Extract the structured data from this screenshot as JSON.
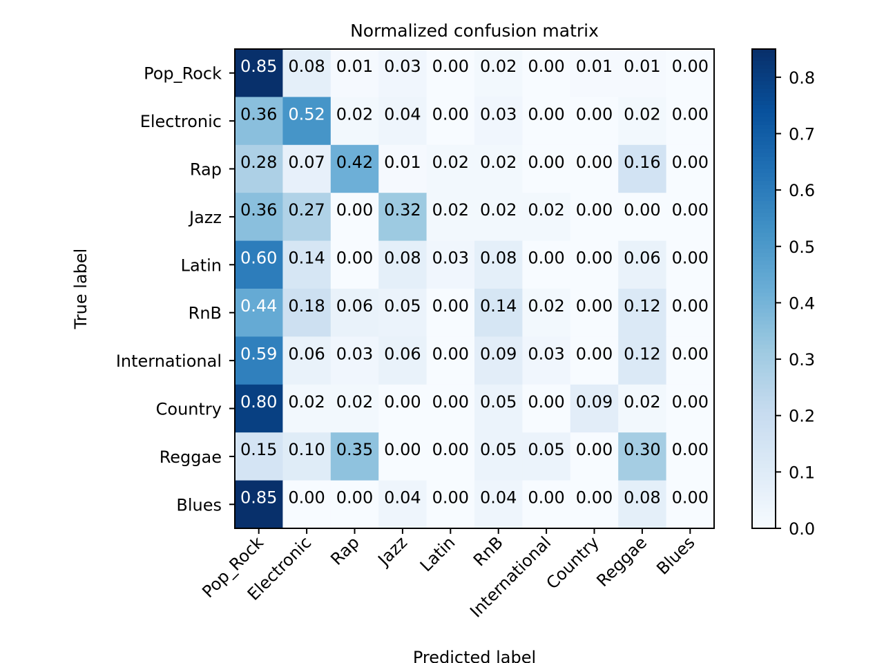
{
  "chart_data": {
    "type": "heatmap",
    "title": "Normalized confusion matrix",
    "xlabel": "Predicted label",
    "ylabel": "True label",
    "row_labels": [
      "Pop_Rock",
      "Electronic",
      "Rap",
      "Jazz",
      "Latin",
      "RnB",
      "International",
      "Country",
      "Reggae",
      "Blues"
    ],
    "col_labels": [
      "Pop_Rock",
      "Electronic",
      "Rap",
      "Jazz",
      "Latin",
      "RnB",
      "International",
      "Country",
      "Reggae",
      "Blues"
    ],
    "values": [
      [
        0.85,
        0.08,
        0.01,
        0.03,
        0.0,
        0.02,
        0.0,
        0.01,
        0.01,
        0.0
      ],
      [
        0.36,
        0.52,
        0.02,
        0.04,
        0.0,
        0.03,
        0.0,
        0.0,
        0.02,
        0.0
      ],
      [
        0.28,
        0.07,
        0.42,
        0.01,
        0.02,
        0.02,
        0.0,
        0.0,
        0.16,
        0.0
      ],
      [
        0.36,
        0.27,
        0.0,
        0.32,
        0.02,
        0.02,
        0.02,
        0.0,
        0.0,
        0.0
      ],
      [
        0.6,
        0.14,
        0.0,
        0.08,
        0.03,
        0.08,
        0.0,
        0.0,
        0.06,
        0.0
      ],
      [
        0.44,
        0.18,
        0.06,
        0.05,
        0.0,
        0.14,
        0.02,
        0.0,
        0.12,
        0.0
      ],
      [
        0.59,
        0.06,
        0.03,
        0.06,
        0.0,
        0.09,
        0.03,
        0.0,
        0.12,
        0.0
      ],
      [
        0.8,
        0.02,
        0.02,
        0.0,
        0.0,
        0.05,
        0.0,
        0.09,
        0.02,
        0.0
      ],
      [
        0.15,
        0.1,
        0.35,
        0.0,
        0.0,
        0.05,
        0.05,
        0.0,
        0.3,
        0.0
      ],
      [
        0.85,
        0.0,
        0.0,
        0.04,
        0.0,
        0.04,
        0.0,
        0.0,
        0.08,
        0.0
      ]
    ],
    "colormap": "Blues",
    "vmin": 0,
    "vmax": 0.85,
    "colorbar_ticks": [
      "0.0",
      "0.1",
      "0.2",
      "0.3",
      "0.4",
      "0.5",
      "0.6",
      "0.7",
      "0.8"
    ],
    "text_color_dark": "#000000",
    "text_color_light": "#ffffff"
  }
}
